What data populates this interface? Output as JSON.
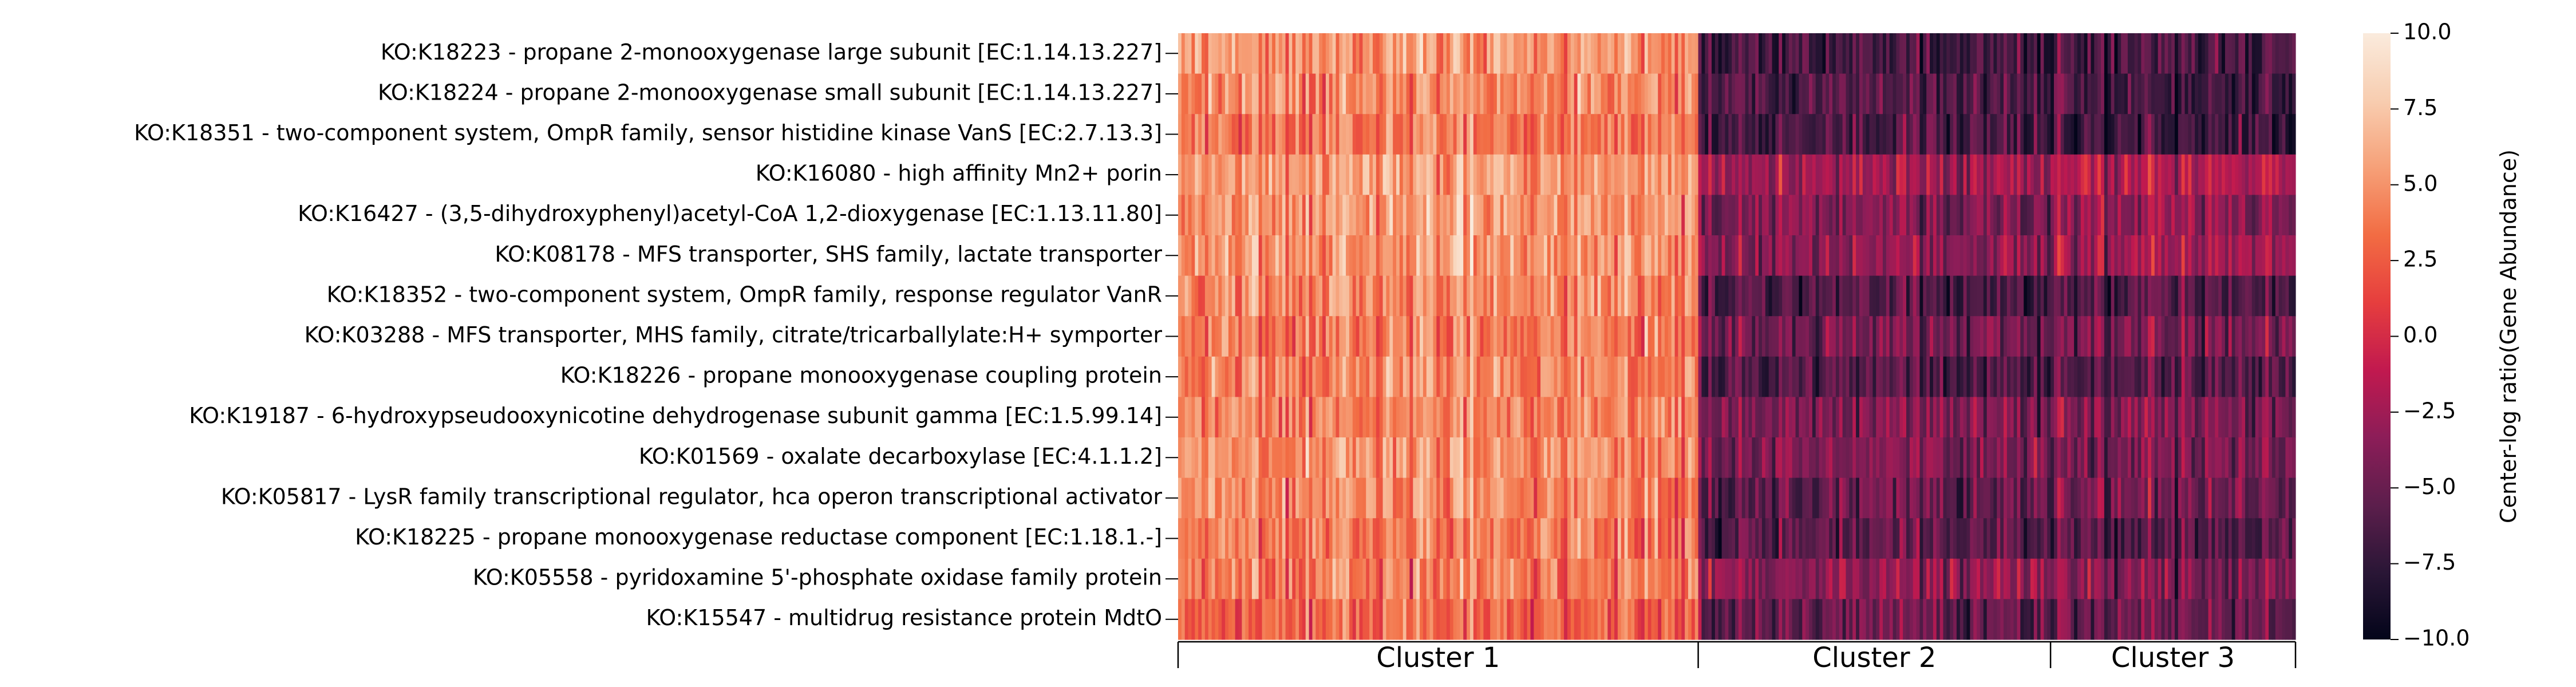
{
  "chart_data": {
    "type": "heatmap",
    "rows": [
      "KO:K18223 - propane 2-monooxygenase large subunit [EC:1.14.13.227]",
      "KO:K18224 - propane 2-monooxygenase small subunit [EC:1.14.13.227]",
      "KO:K18351 - two-component system, OmpR family, sensor histidine kinase VanS [EC:2.7.13.3]",
      "KO:K16080 - high affinity Mn2+ porin",
      "KO:K16427 - (3,5-dihydroxyphenyl)acetyl-CoA 1,2-dioxygenase [EC:1.13.11.80]",
      "KO:K08178 - MFS transporter, SHS family, lactate transporter",
      "KO:K18352 - two-component system, OmpR family, response regulator VanR",
      "KO:K03288 - MFS transporter, MHS family, citrate/tricarballylate:H+ symporter",
      "KO:K18226 - propane monooxygenase coupling protein",
      "KO:K19187 - 6-hydroxypseudooxynicotine dehydrogenase subunit gamma [EC:1.5.99.14]",
      "KO:K01569 - oxalate decarboxylase [EC:4.1.1.2]",
      "KO:K05817 - LysR family transcriptional regulator, hca operon transcriptional activator",
      "KO:K18225 - propane monooxygenase reductase component [EC:1.18.1.-]",
      "KO:K05558 - pyridoxamine 5'-phosphate oxidase family protein",
      "KO:K15547 - multidrug resistance protein MdtO"
    ],
    "clusters": [
      {
        "label": "Cluster 1",
        "samples": 155,
        "mean_row_values": [
          5.0,
          4.5,
          4.0,
          5.5,
          5.0,
          5.0,
          4.5,
          4.0,
          4.5,
          4.5,
          5.0,
          4.5,
          4.0,
          4.0,
          3.0
        ]
      },
      {
        "label": "Cluster 2",
        "samples": 105,
        "mean_row_values": [
          -6.5,
          -6.0,
          -6.5,
          -2.5,
          -4.0,
          -3.5,
          -6.0,
          -4.5,
          -6.0,
          -4.0,
          -4.0,
          -5.0,
          -5.5,
          -3.0,
          -5.0
        ]
      },
      {
        "label": "Cluster 3",
        "samples": 73,
        "mean_row_values": [
          -6.5,
          -6.5,
          -7.0,
          -1.5,
          -3.0,
          -2.5,
          -6.0,
          -4.0,
          -6.0,
          -4.0,
          -4.5,
          -4.5,
          -6.0,
          -4.0,
          -5.0
        ]
      }
    ],
    "colorbar": {
      "label": "Center-log ratio(Gene Abundance)",
      "min": -10.0,
      "max": 10.0,
      "ticks": [
        "10.0",
        "7.5",
        "5.0",
        "2.5",
        "0.0",
        "−2.5",
        "−5.0",
        "−7.5",
        "−10.0"
      ]
    },
    "colormap": [
      "#03051a",
      "#2a1636",
      "#5c1e4c",
      "#8c1d58",
      "#c1194f",
      "#e63e3e",
      "#f26c43",
      "#f6a078",
      "#f8cdb0",
      "#faebdd"
    ]
  }
}
